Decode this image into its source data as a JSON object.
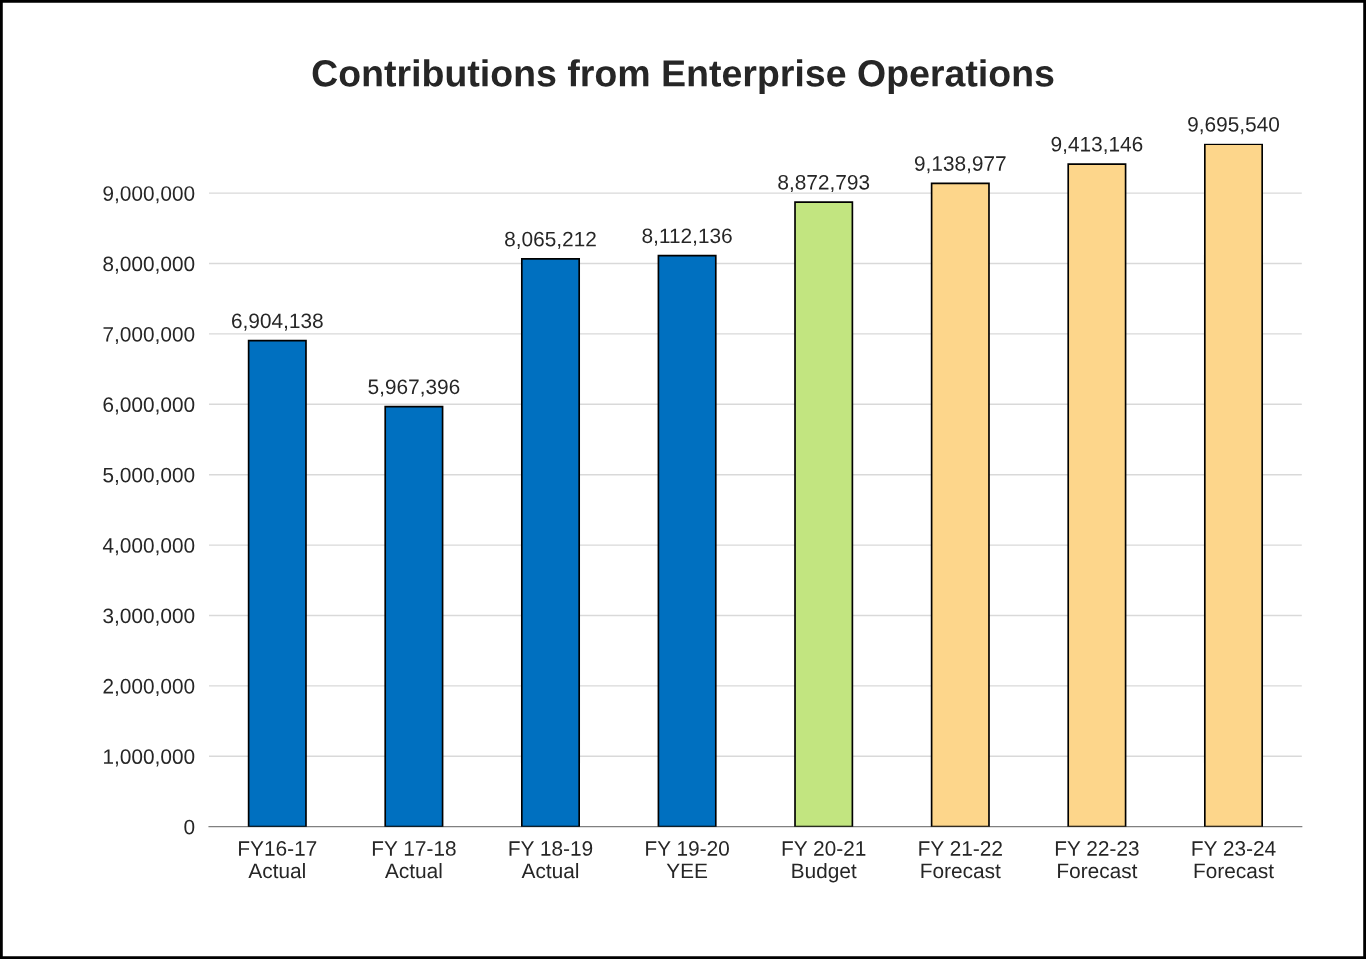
{
  "chart_data": {
    "type": "bar",
    "title": "Contributions from Enterprise Operations",
    "categories": [
      "FY16-17\nActual",
      "FY 17-18\nActual",
      "FY 18-19\nActual",
      "FY 19-20\nYEE",
      "FY 20-21\nBudget",
      "FY 21-22\nForecast",
      "FY 22-23\nForecast",
      "FY 23-24\nForecast"
    ],
    "values": [
      6904138,
      5967396,
      8065212,
      8112136,
      8872793,
      9138977,
      9413146,
      9695540
    ],
    "colors": [
      "#0070c0",
      "#0070c0",
      "#0070c0",
      "#0070c0",
      "#c2e580",
      "#fdd68b",
      "#fdd68b",
      "#fdd68b"
    ],
    "value_labels": [
      "6,904,138",
      "5,967,396",
      "8,065,212",
      "8,112,136",
      "8,872,793",
      "9,138,977",
      "9,413,146",
      "9,695,540"
    ],
    "ylim": [
      0,
      9700000
    ],
    "yticks": [
      {
        "value": 0,
        "label": "0"
      },
      {
        "value": 1000000,
        "label": "1,000,000"
      },
      {
        "value": 2000000,
        "label": "2,000,000"
      },
      {
        "value": 3000000,
        "label": "3,000,000"
      },
      {
        "value": 4000000,
        "label": "4,000,000"
      },
      {
        "value": 5000000,
        "label": "5,000,000"
      },
      {
        "value": 6000000,
        "label": "6,000,000"
      },
      {
        "value": 7000000,
        "label": "7,000,000"
      },
      {
        "value": 8000000,
        "label": "8,000,000"
      },
      {
        "value": 9000000,
        "label": "9,000,000"
      }
    ],
    "grid": "y",
    "legend": false
  }
}
